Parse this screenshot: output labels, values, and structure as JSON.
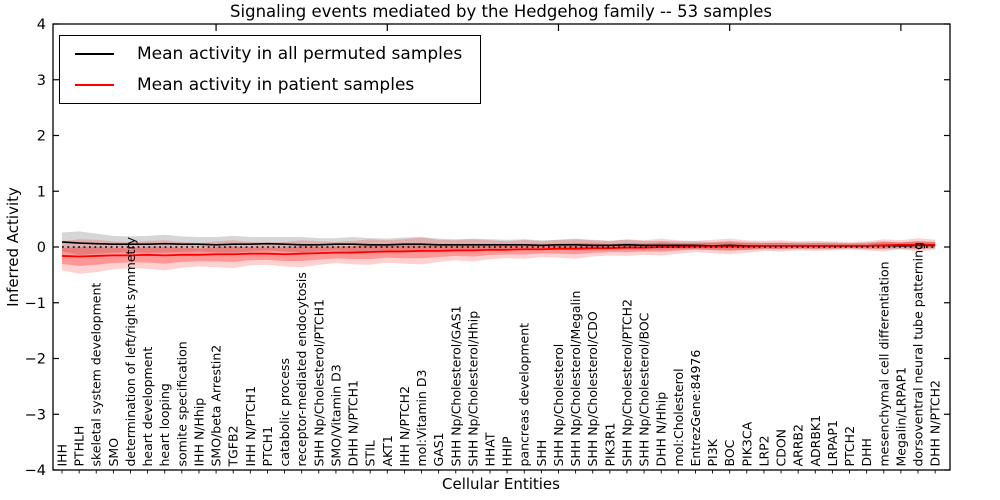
{
  "title": "Signaling events mediated by the Hedgehog family -- 53 samples",
  "legend": {
    "items": [
      {
        "label": "Mean activity in all permuted samples",
        "color": "#000000"
      },
      {
        "label": "Mean activity in patient samples",
        "color": "#ff0000"
      }
    ],
    "position": "upper left"
  },
  "colors": {
    "permuted_line": "#000000",
    "permuted_band": "rgba(0,0,0,0.16)",
    "patient_line": "#ff0000",
    "patient_band_outer": "rgba(255,0,0,0.18)",
    "patient_band_inner": "rgba(255,0,0,0.28)",
    "axis": "#000000",
    "background": "#ffffff"
  },
  "chart_data": {
    "type": "line",
    "title": "Signaling events mediated by the Hedgehog family -- 53 samples",
    "xlabel": "Cellular Entities",
    "ylabel": "Inferred Activity",
    "ylim": [
      -4,
      4
    ],
    "yticks": [
      4,
      3,
      2,
      1,
      0,
      -1,
      -2,
      -3,
      -4
    ],
    "x_major_tick_indices": [
      9,
      19,
      29,
      39,
      49
    ],
    "grid": false,
    "legend_position": "upper left",
    "zero_line": {
      "y": 0,
      "style": "dotted",
      "color": "#000000"
    },
    "categories": [
      "IHH",
      "PTHLH",
      "skeletal system development",
      "SMO",
      "determination of left/right symmetry",
      "heart development",
      "heart looping",
      "somite specification",
      "IHH N/Hhip",
      "SMO/beta Arrestin2",
      "TGFB2",
      "IHH N/PTCH1",
      "PTCH1",
      "catabolic process",
      "receptor-mediated endocytosis",
      "SHH Np/Cholesterol/PTCH1",
      "SMO/Vitamin D3",
      "DHH N/PTCH1",
      "STIL",
      "AKT1",
      "IHH N/PTCH2",
      "mol:Vitamin D3",
      "GAS1",
      "SHH Np/Cholesterol/GAS1",
      "SHH Np/Cholesterol/Hhip",
      "HHAT",
      "HHIP",
      "pancreas development",
      "SHH",
      "SHH Np/Cholesterol",
      "SHH Np/Cholesterol/Megalin",
      "SHH Np/Cholesterol/CDO",
      "PIK3R1",
      "SHH Np/Cholesterol/PTCH2",
      "SHH Np/Cholesterol/BOC",
      "DHH N/Hhip",
      "mol:Cholesterol",
      "EntrezGene:84976",
      "PI3K",
      "BOC",
      "PIK3CA",
      "LRP2",
      "CDON",
      "ARRB2",
      "ADRBK1",
      "LRPAP1",
      "PTCH2",
      "DHH",
      "mesenchymal cell differentiation",
      "Megalin/LRPAP1",
      "dorsoventral neural tube patterning",
      "DHH N/PTCH2"
    ],
    "series": [
      {
        "name": "Mean activity in all permuted samples",
        "color": "#000000",
        "values": [
          0.09,
          0.07,
          0.06,
          0.05,
          0.05,
          0.05,
          0.06,
          0.05,
          0.05,
          0.04,
          0.05,
          0.05,
          0.06,
          0.05,
          0.04,
          0.04,
          0.05,
          0.05,
          0.04,
          0.04,
          0.05,
          0.05,
          0.04,
          0.04,
          0.04,
          0.04,
          0.04,
          0.04,
          0.03,
          0.04,
          0.04,
          0.03,
          0.03,
          0.04,
          0.03,
          0.03,
          0.03,
          0.03,
          0.02,
          0.03,
          0.02,
          0.02,
          0.02,
          0.02,
          0.02,
          0.02,
          0.02,
          0.02,
          0.03,
          0.02,
          0.03,
          0.03
        ],
        "band_halfwidth": [
          0.17,
          0.21,
          0.18,
          0.15,
          0.14,
          0.15,
          0.16,
          0.14,
          0.13,
          0.14,
          0.15,
          0.13,
          0.12,
          0.13,
          0.14,
          0.12,
          0.11,
          0.13,
          0.12,
          0.11,
          0.12,
          0.13,
          0.11,
          0.1,
          0.11,
          0.1,
          0.09,
          0.1,
          0.09,
          0.09,
          0.1,
          0.09,
          0.08,
          0.09,
          0.08,
          0.08,
          0.07,
          0.07,
          0.07,
          0.08,
          0.07,
          0.06,
          0.06,
          0.06,
          0.06,
          0.06,
          0.05,
          0.06,
          0.07,
          0.06,
          0.07,
          0.06
        ]
      },
      {
        "name": "Mean activity in patient samples",
        "color": "#ff0000",
        "values": [
          -0.16,
          -0.17,
          -0.16,
          -0.15,
          -0.15,
          -0.14,
          -0.15,
          -0.14,
          -0.14,
          -0.13,
          -0.13,
          -0.12,
          -0.12,
          -0.13,
          -0.12,
          -0.11,
          -0.1,
          -0.1,
          -0.09,
          -0.08,
          -0.08,
          -0.07,
          -0.07,
          -0.06,
          -0.06,
          -0.05,
          -0.05,
          -0.04,
          -0.04,
          -0.03,
          -0.03,
          -0.02,
          -0.02,
          -0.01,
          -0.01,
          0.0,
          0.0,
          0.01,
          0.01,
          0.01,
          0.01,
          0.02,
          0.02,
          0.02,
          0.02,
          0.02,
          0.02,
          0.02,
          0.03,
          0.04,
          0.04,
          0.04
        ],
        "band_halfwidth": [
          0.26,
          0.31,
          0.29,
          0.25,
          0.23,
          0.25,
          0.27,
          0.23,
          0.21,
          0.23,
          0.25,
          0.21,
          0.2,
          0.22,
          0.24,
          0.21,
          0.19,
          0.21,
          0.23,
          0.2,
          0.22,
          0.24,
          0.2,
          0.18,
          0.2,
          0.17,
          0.15,
          0.17,
          0.14,
          0.16,
          0.18,
          0.15,
          0.13,
          0.15,
          0.13,
          0.15,
          0.12,
          0.1,
          0.12,
          0.14,
          0.11,
          0.09,
          0.1,
          0.08,
          0.09,
          0.08,
          0.07,
          0.08,
          0.11,
          0.08,
          0.12,
          0.09
        ]
      }
    ]
  }
}
